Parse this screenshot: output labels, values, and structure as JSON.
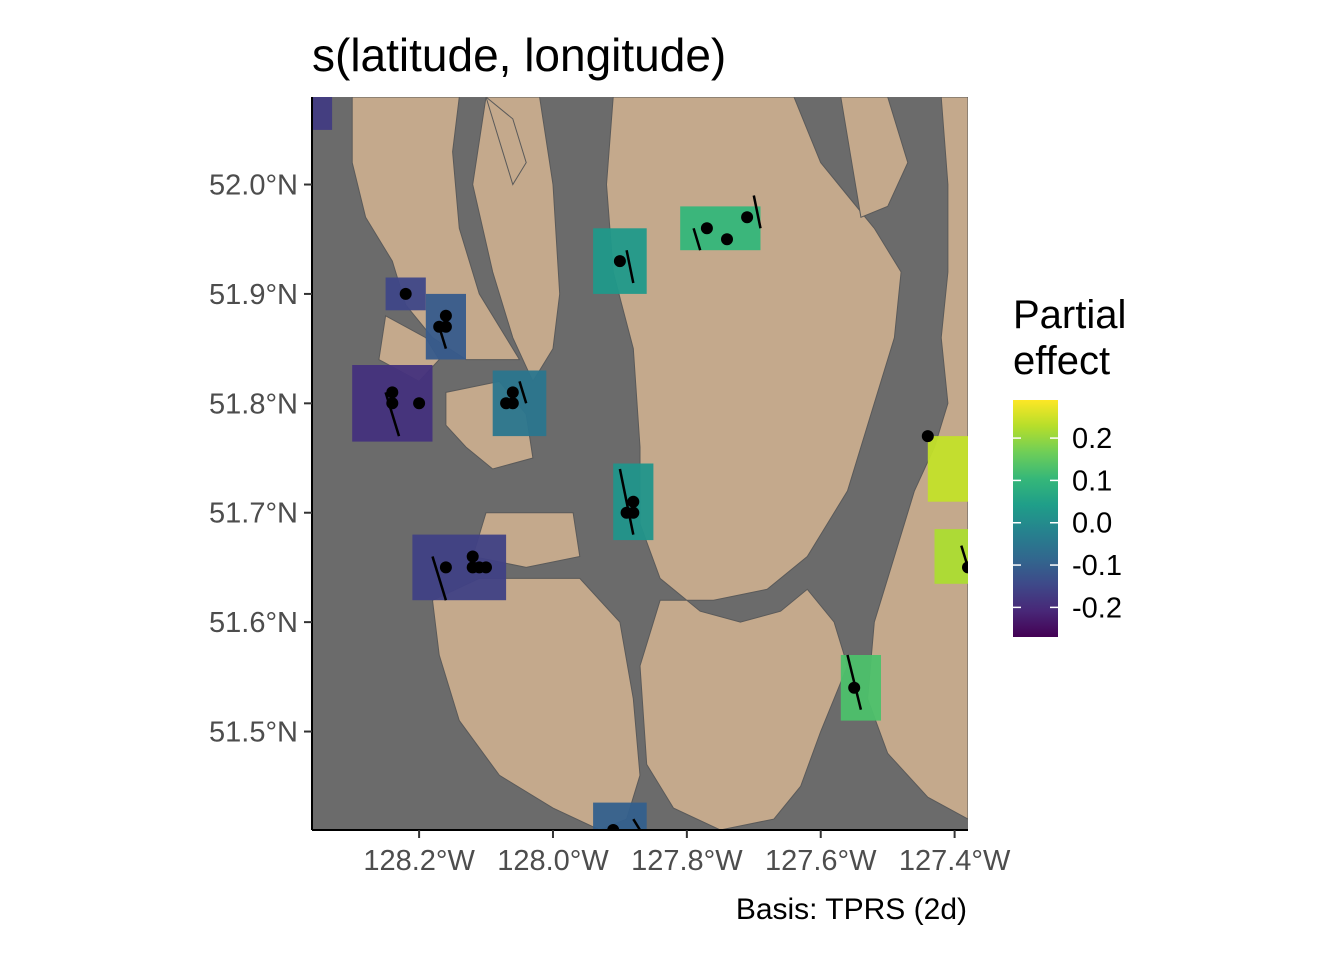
{
  "title": "s(latitude, longitude)",
  "caption": "Basis: TPRS (2d)",
  "legend": {
    "title_line1": "Partial",
    "title_line2": "effect",
    "range": [
      -0.27,
      0.29
    ],
    "ticks": [
      {
        "value": 0.2,
        "label": "0.2"
      },
      {
        "value": 0.1,
        "label": "0.1"
      },
      {
        "value": 0.0,
        "label": "0.0"
      },
      {
        "value": -0.1,
        "label": "-0.1"
      },
      {
        "value": -0.2,
        "label": "-0.2"
      }
    ],
    "palette": [
      "#fde725",
      "#b5de2b",
      "#6ece58",
      "#35b779",
      "#1f9e89",
      "#26828e",
      "#31688e",
      "#3e4989",
      "#482878",
      "#440154"
    ]
  },
  "colors": {
    "water": "#6b6b6b",
    "land": "#c4a98c"
  },
  "map_data": {
    "xlim": [
      -128.36,
      -127.38
    ],
    "ylim": [
      51.41,
      52.08
    ],
    "x_ticks": [
      {
        "value": -128.2,
        "label": "128.2°W"
      },
      {
        "value": -128.0,
        "label": "128.0°W"
      },
      {
        "value": -127.8,
        "label": "127.8°W"
      },
      {
        "value": -127.6,
        "label": "127.6°W"
      },
      {
        "value": -127.4,
        "label": "127.4°W"
      }
    ],
    "y_ticks": [
      {
        "value": 52.0,
        "label": "52.0°N"
      },
      {
        "value": 51.9,
        "label": "51.9°N"
      },
      {
        "value": 51.8,
        "label": "51.8°N"
      },
      {
        "value": 51.7,
        "label": "51.7°N"
      },
      {
        "value": 51.6,
        "label": "51.6°N"
      },
      {
        "value": 51.5,
        "label": "51.5°N"
      }
    ],
    "land_polygons": [
      [
        [
          -128.3,
          52.08
        ],
        [
          -128.14,
          52.08
        ],
        [
          -128.15,
          52.03
        ],
        [
          -128.14,
          51.96
        ],
        [
          -128.11,
          51.9
        ],
        [
          -128.08,
          51.87
        ],
        [
          -128.05,
          51.84
        ],
        [
          -128.13,
          51.84
        ],
        [
          -128.18,
          51.86
        ],
        [
          -128.22,
          51.89
        ],
        [
          -128.24,
          51.93
        ],
        [
          -128.28,
          51.97
        ],
        [
          -128.3,
          52.02
        ]
      ],
      [
        [
          -128.1,
          52.08
        ],
        [
          -128.02,
          52.08
        ],
        [
          -128.0,
          52.0
        ],
        [
          -127.99,
          51.9
        ],
        [
          -128.0,
          51.85
        ],
        [
          -128.03,
          51.82
        ],
        [
          -128.06,
          51.86
        ],
        [
          -128.09,
          51.92
        ],
        [
          -128.12,
          52.0
        ]
      ],
      [
        [
          -128.16,
          51.81
        ],
        [
          -128.08,
          51.82
        ],
        [
          -128.04,
          51.79
        ],
        [
          -128.03,
          51.75
        ],
        [
          -128.09,
          51.74
        ],
        [
          -128.13,
          51.76
        ],
        [
          -128.16,
          51.78
        ]
      ],
      [
        [
          -128.25,
          51.88
        ],
        [
          -128.19,
          51.86
        ],
        [
          -128.17,
          51.84
        ],
        [
          -128.2,
          51.82
        ],
        [
          -128.26,
          51.84
        ]
      ],
      [
        [
          -128.04,
          51.7
        ],
        [
          -127.97,
          51.7
        ],
        [
          -127.96,
          51.66
        ],
        [
          -128.04,
          51.65
        ],
        [
          -128.12,
          51.66
        ],
        [
          -128.1,
          51.7
        ]
      ],
      [
        [
          -128.18,
          51.62
        ],
        [
          -128.11,
          51.64
        ],
        [
          -128.04,
          51.64
        ],
        [
          -127.96,
          51.64
        ],
        [
          -127.9,
          51.6
        ],
        [
          -127.88,
          51.53
        ],
        [
          -127.87,
          51.46
        ],
        [
          -127.89,
          51.42
        ],
        [
          -127.93,
          51.41
        ],
        [
          -128.0,
          51.43
        ],
        [
          -128.08,
          51.46
        ],
        [
          -128.14,
          51.51
        ],
        [
          -128.17,
          51.57
        ]
      ],
      [
        [
          -127.91,
          52.08
        ],
        [
          -127.92,
          52.0
        ],
        [
          -127.91,
          51.92
        ],
        [
          -127.88,
          51.85
        ],
        [
          -127.87,
          51.76
        ],
        [
          -127.87,
          51.69
        ],
        [
          -127.84,
          51.64
        ],
        [
          -127.78,
          51.61
        ],
        [
          -127.72,
          51.6
        ],
        [
          -127.66,
          51.61
        ],
        [
          -127.62,
          51.63
        ],
        [
          -127.58,
          51.6
        ],
        [
          -127.56,
          51.56
        ],
        [
          -127.6,
          51.5
        ],
        [
          -127.63,
          51.45
        ],
        [
          -127.67,
          51.42
        ],
        [
          -127.75,
          51.41
        ],
        [
          -127.82,
          51.43
        ],
        [
          -127.86,
          51.47
        ],
        [
          -127.87,
          51.56
        ],
        [
          -127.84,
          51.62
        ],
        [
          -127.76,
          51.62
        ],
        [
          -127.68,
          51.63
        ],
        [
          -127.62,
          51.66
        ],
        [
          -127.56,
          51.72
        ],
        [
          -127.52,
          51.8
        ],
        [
          -127.49,
          51.86
        ],
        [
          -127.48,
          51.92
        ],
        [
          -127.52,
          51.96
        ],
        [
          -127.56,
          51.99
        ],
        [
          -127.6,
          52.02
        ],
        [
          -127.62,
          52.05
        ],
        [
          -127.64,
          52.08
        ]
      ],
      [
        [
          -127.57,
          52.08
        ],
        [
          -127.5,
          52.08
        ],
        [
          -127.47,
          52.02
        ],
        [
          -127.5,
          51.98
        ],
        [
          -127.54,
          51.97
        ]
      ],
      [
        [
          -127.42,
          52.08
        ],
        [
          -127.38,
          52.08
        ],
        [
          -127.38,
          51.42
        ],
        [
          -127.44,
          51.44
        ],
        [
          -127.5,
          51.48
        ],
        [
          -127.53,
          51.53
        ],
        [
          -127.52,
          51.6
        ],
        [
          -127.49,
          51.66
        ],
        [
          -127.46,
          51.72
        ],
        [
          -127.43,
          51.76
        ],
        [
          -127.41,
          51.8
        ],
        [
          -127.42,
          51.86
        ],
        [
          -127.41,
          51.92
        ],
        [
          -127.41,
          52.0
        ]
      ],
      [
        [
          -128.1,
          52.08
        ],
        [
          -128.06,
          52.06
        ],
        [
          -128.04,
          52.02
        ],
        [
          -128.06,
          52.0
        ],
        [
          -128.08,
          52.04
        ]
      ]
    ],
    "partial_effect_patches": [
      {
        "value": -0.17,
        "center": [
          -128.35,
          52.07
        ],
        "half_width": [
          0.02,
          0.02
        ]
      },
      {
        "value": -0.15,
        "center": [
          -128.22,
          51.9
        ],
        "half_width": [
          0.03,
          0.015
        ]
      },
      {
        "value": -0.11,
        "center": [
          -128.16,
          51.87
        ],
        "half_width": [
          0.03,
          0.03
        ]
      },
      {
        "value": -0.19,
        "center": [
          -128.24,
          51.8
        ],
        "half_width": [
          0.06,
          0.035
        ]
      },
      {
        "value": -0.05,
        "center": [
          -128.05,
          51.8
        ],
        "half_width": [
          0.04,
          0.03
        ]
      },
      {
        "value": 0.03,
        "center": [
          -127.9,
          51.93
        ],
        "half_width": [
          0.04,
          0.03
        ]
      },
      {
        "value": 0.1,
        "center": [
          -127.75,
          51.96
        ],
        "half_width": [
          0.06,
          0.02
        ]
      },
      {
        "value": 0.02,
        "center": [
          -127.88,
          51.71
        ],
        "half_width": [
          0.03,
          0.035
        ]
      },
      {
        "value": -0.16,
        "center": [
          -128.14,
          51.65
        ],
        "half_width": [
          0.07,
          0.03
        ]
      },
      {
        "value": -0.1,
        "center": [
          -127.9,
          51.42
        ],
        "half_width": [
          0.04,
          0.015
        ]
      },
      {
        "value": 0.24,
        "center": [
          -127.41,
          51.74
        ],
        "half_width": [
          0.03,
          0.03
        ]
      },
      {
        "value": 0.22,
        "center": [
          -127.4,
          51.66
        ],
        "half_width": [
          0.03,
          0.025
        ]
      },
      {
        "value": 0.13,
        "center": [
          -127.54,
          51.54
        ],
        "half_width": [
          0.03,
          0.03
        ]
      }
    ],
    "observations": [
      {
        "lon": -128.22,
        "lat": 51.9
      },
      {
        "lon": -128.16,
        "lat": 51.88
      },
      {
        "lon": -128.16,
        "lat": 51.87
      },
      {
        "lon": -128.17,
        "lat": 51.87
      },
      {
        "lon": -128.24,
        "lat": 51.81
      },
      {
        "lon": -128.24,
        "lat": 51.8
      },
      {
        "lon": -128.2,
        "lat": 51.8
      },
      {
        "lon": -128.06,
        "lat": 51.81
      },
      {
        "lon": -128.06,
        "lat": 51.8
      },
      {
        "lon": -128.07,
        "lat": 51.8
      },
      {
        "lon": -127.9,
        "lat": 51.93
      },
      {
        "lon": -127.77,
        "lat": 51.96
      },
      {
        "lon": -127.74,
        "lat": 51.95
      },
      {
        "lon": -127.71,
        "lat": 51.97
      },
      {
        "lon": -127.88,
        "lat": 51.71
      },
      {
        "lon": -127.89,
        "lat": 51.7
      },
      {
        "lon": -127.88,
        "lat": 51.7
      },
      {
        "lon": -128.16,
        "lat": 51.65
      },
      {
        "lon": -128.12,
        "lat": 51.65
      },
      {
        "lon": -128.12,
        "lat": 51.66
      },
      {
        "lon": -128.11,
        "lat": 51.65
      },
      {
        "lon": -128.1,
        "lat": 51.65
      },
      {
        "lon": -127.44,
        "lat": 51.77
      },
      {
        "lon": -127.38,
        "lat": 51.65
      },
      {
        "lon": -127.55,
        "lat": 51.54
      },
      {
        "lon": -127.91,
        "lat": 51.41
      }
    ],
    "transects": [
      {
        "from": [
          -128.25,
          51.81
        ],
        "to": [
          -128.23,
          51.77
        ]
      },
      {
        "from": [
          -128.17,
          51.87
        ],
        "to": [
          -128.16,
          51.85
        ]
      },
      {
        "from": [
          -128.05,
          51.82
        ],
        "to": [
          -128.04,
          51.8
        ]
      },
      {
        "from": [
          -127.89,
          51.94
        ],
        "to": [
          -127.88,
          51.91
        ]
      },
      {
        "from": [
          -127.79,
          51.96
        ],
        "to": [
          -127.78,
          51.94
        ]
      },
      {
        "from": [
          -127.7,
          51.99
        ],
        "to": [
          -127.69,
          51.96
        ]
      },
      {
        "from": [
          -127.9,
          51.74
        ],
        "to": [
          -127.88,
          51.68
        ]
      },
      {
        "from": [
          -128.18,
          51.66
        ],
        "to": [
          -128.16,
          51.62
        ]
      },
      {
        "from": [
          -127.56,
          51.57
        ],
        "to": [
          -127.54,
          51.52
        ]
      },
      {
        "from": [
          -127.39,
          51.67
        ],
        "to": [
          -127.38,
          51.65
        ]
      },
      {
        "from": [
          -127.88,
          51.42
        ],
        "to": [
          -127.87,
          51.41
        ]
      }
    ]
  }
}
